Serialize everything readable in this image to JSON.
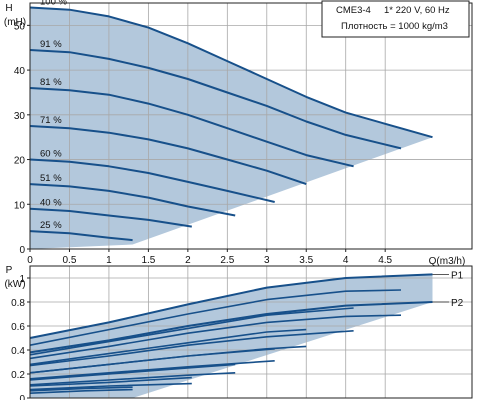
{
  "chart_data": [
    {
      "type": "line",
      "panel": "head-flow",
      "ylabel_lines": [
        "H",
        "(mH)"
      ],
      "xlabel": "Q(m3/h)",
      "xlim": [
        0,
        5.6
      ],
      "ylim": [
        0,
        55
      ],
      "x_ticks": [
        0,
        0.5,
        1,
        1.5,
        2,
        2.5,
        3,
        3.5,
        4,
        4.5
      ],
      "x_tick_labels": [
        "0",
        "0.5",
        "1",
        "1.5",
        "2",
        "2.5",
        "3",
        "3.5",
        "4",
        "4.5"
      ],
      "y_ticks": [
        0,
        10,
        20,
        30,
        40,
        50
      ],
      "y_tick_labels": [
        "0",
        "10",
        "20",
        "30",
        "40",
        "50"
      ],
      "grid": true,
      "info_box": {
        "model": "CME3-4",
        "supply": "1* 220 V, 60 Hz",
        "density": "Плотность = 1000 kg/m3"
      },
      "max_curve": {
        "x": [
          0,
          0.5,
          1,
          1.5,
          2,
          2.5,
          3,
          3.5,
          4,
          4.5,
          5.1
        ],
        "y": [
          54,
          53.5,
          52,
          49.5,
          46,
          42,
          38,
          34,
          30.5,
          28,
          25
        ]
      },
      "lower_limit": {
        "x": [
          1.3,
          5.1
        ],
        "y": [
          1,
          25
        ]
      },
      "speed_curves": [
        {
          "label": "100 %",
          "x": [
            0,
            0.5,
            1,
            1.5,
            2,
            2.5,
            3,
            3.5,
            4,
            4.5,
            5.1
          ],
          "y": [
            54,
            53.5,
            52,
            49.5,
            46,
            42,
            38,
            34,
            30.5,
            28,
            25
          ]
        },
        {
          "label": "91 %",
          "x": [
            0,
            0.5,
            1,
            1.5,
            2,
            2.5,
            3,
            3.5,
            4,
            4.7
          ],
          "y": [
            44.5,
            44,
            42.5,
            40.5,
            38,
            35,
            32,
            28.5,
            25.5,
            22.5
          ]
        },
        {
          "label": "81 %",
          "x": [
            0,
            0.5,
            1,
            1.5,
            2,
            2.5,
            3,
            3.5,
            4.1
          ],
          "y": [
            36,
            35.5,
            34.5,
            32.5,
            30,
            27,
            24,
            21,
            18.5
          ]
        },
        {
          "label": "71 %",
          "x": [
            0,
            0.5,
            1,
            1.5,
            2,
            2.5,
            3,
            3.5
          ],
          "y": [
            27.5,
            27,
            26,
            24.5,
            22.5,
            20,
            17.5,
            14.5
          ]
        },
        {
          "label": "60 %",
          "x": [
            0,
            0.5,
            1,
            1.5,
            2,
            2.5,
            3.1
          ],
          "y": [
            20,
            19.5,
            18.5,
            17,
            15,
            13,
            10.5
          ]
        },
        {
          "label": "51 %",
          "x": [
            0,
            0.5,
            1,
            1.5,
            2,
            2.6
          ],
          "y": [
            14.5,
            14,
            13,
            11.5,
            9.5,
            7.5
          ]
        },
        {
          "label": "40 %",
          "x": [
            0,
            0.5,
            1,
            1.5,
            2.05
          ],
          "y": [
            9,
            8.5,
            7.5,
            6.5,
            5
          ]
        },
        {
          "label": "25 %",
          "x": [
            0,
            0.5,
            1,
            1.3
          ],
          "y": [
            4,
            3.5,
            2.5,
            2
          ]
        }
      ]
    },
    {
      "type": "line",
      "panel": "power-flow",
      "ylabel_lines": [
        "P",
        "(kW)"
      ],
      "xlim": [
        0,
        5.6
      ],
      "ylim": [
        0,
        1.1
      ],
      "x_ticks": [
        0,
        0.5,
        1,
        1.5,
        2,
        2.5,
        3,
        3.5,
        4,
        4.5
      ],
      "y_ticks": [
        0,
        0.2,
        0.4,
        0.6,
        0.8,
        1
      ],
      "y_tick_labels": [
        "0",
        "0.2",
        "0.4",
        "0.6",
        "0.8",
        "1"
      ],
      "grid": true,
      "series": [
        {
          "name": "P1",
          "x": [
            0,
            1,
            2,
            3,
            4,
            5.1
          ],
          "y": [
            0.5,
            0.63,
            0.78,
            0.92,
            1.0,
            1.03
          ]
        },
        {
          "name": "P2",
          "x": [
            0,
            1,
            2,
            3,
            4,
            5.1
          ],
          "y": [
            0.38,
            0.48,
            0.6,
            0.7,
            0.77,
            0.8
          ]
        }
      ],
      "fan_curves": [
        {
          "x": [
            0,
            1,
            2,
            3,
            4,
            4.7
          ],
          "y": [
            0.44,
            0.57,
            0.7,
            0.82,
            0.89,
            0.9
          ]
        },
        {
          "x": [
            0,
            1,
            2,
            3,
            4,
            4.7
          ],
          "y": [
            0.33,
            0.43,
            0.54,
            0.63,
            0.68,
            0.69
          ]
        },
        {
          "x": [
            0,
            1,
            2,
            3,
            4.1
          ],
          "y": [
            0.36,
            0.47,
            0.58,
            0.69,
            0.75
          ]
        },
        {
          "x": [
            0,
            1,
            2,
            3,
            4.1
          ],
          "y": [
            0.27,
            0.35,
            0.44,
            0.51,
            0.56
          ]
        },
        {
          "x": [
            0,
            1,
            2,
            3,
            3.5
          ],
          "y": [
            0.28,
            0.37,
            0.46,
            0.55,
            0.57
          ]
        },
        {
          "x": [
            0,
            1,
            2,
            3,
            3.5
          ],
          "y": [
            0.21,
            0.28,
            0.35,
            0.41,
            0.43
          ]
        },
        {
          "x": [
            0,
            1,
            2,
            3.1
          ],
          "y": [
            0.21,
            0.28,
            0.35,
            0.41
          ]
        },
        {
          "x": [
            0,
            1,
            2,
            3.1
          ],
          "y": [
            0.16,
            0.21,
            0.26,
            0.31
          ]
        },
        {
          "x": [
            0,
            1,
            2,
            2.6
          ],
          "y": [
            0.15,
            0.2,
            0.25,
            0.28
          ]
        },
        {
          "x": [
            0,
            1,
            2,
            2.6
          ],
          "y": [
            0.11,
            0.15,
            0.19,
            0.21
          ]
        },
        {
          "x": [
            0,
            1,
            2.05
          ],
          "y": [
            0.1,
            0.13,
            0.17
          ]
        },
        {
          "x": [
            0,
            1,
            2.05
          ],
          "y": [
            0.07,
            0.1,
            0.12
          ]
        },
        {
          "x": [
            0,
            0.7,
            1.3
          ],
          "y": [
            0.06,
            0.08,
            0.09
          ]
        },
        {
          "x": [
            0,
            0.7,
            1.3
          ],
          "y": [
            0.04,
            0.06,
            0.07
          ]
        }
      ]
    }
  ],
  "colors": {
    "fill": "#b3c8dc",
    "curve": "#17508a",
    "grid": "#a8a8a8",
    "axis": "#222222",
    "background": "#ffffff"
  }
}
